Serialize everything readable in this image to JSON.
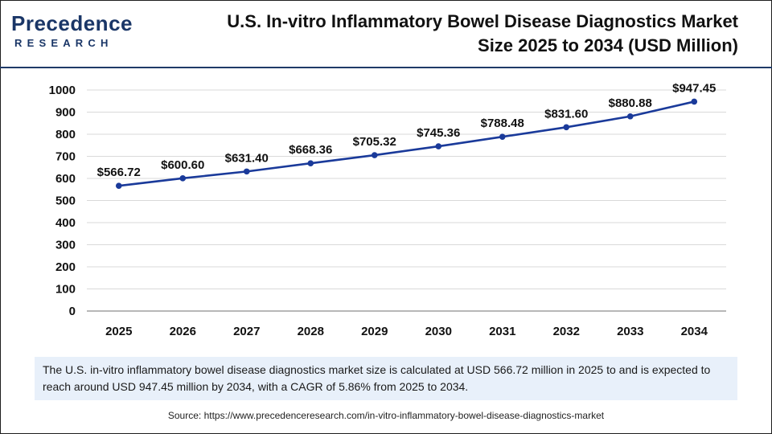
{
  "brand": {
    "logo_top": "Precedence",
    "logo_bottom": "RESEARCH"
  },
  "header": {
    "title_line1": "U.S. In-vitro Inflammatory Bowel Disease Diagnostics Market",
    "title_line2": "Size 2025 to 2034 (USD Million)"
  },
  "chart_data": {
    "type": "line",
    "title": "U.S. In-vitro Inflammatory Bowel Disease Diagnostics Market Size 2025 to 2034 (USD Million)",
    "xlabel": "",
    "ylabel": "",
    "categories": [
      "2025",
      "2026",
      "2027",
      "2028",
      "2029",
      "2030",
      "2031",
      "2032",
      "2033",
      "2034"
    ],
    "series": [
      {
        "name": "Market Size (USD Million)",
        "values": [
          566.72,
          600.6,
          631.4,
          668.36,
          705.32,
          745.36,
          788.48,
          831.6,
          880.88,
          947.45
        ],
        "labels": [
          "$566.72",
          "$600.60",
          "$631.40",
          "$668.36",
          "$705.32",
          "$745.36",
          "$788.48",
          "$831.60",
          "$880.88",
          "$947.45"
        ]
      }
    ],
    "ylim": [
      0,
      1000
    ],
    "yticks": [
      "0",
      "100",
      "200",
      "300",
      "400",
      "500",
      "600",
      "700",
      "800",
      "900",
      "1000"
    ],
    "grid": true,
    "line_color": "#1a3a9a"
  },
  "caption": {
    "text": "The U.S. in-vitro inflammatory bowel disease diagnostics market size is calculated at USD 566.72 million in 2025 to and is expected to reach around USD 947.45 million by 2034, with a CAGR of 5.86% from 2025 to 2034."
  },
  "source": {
    "label": "Source: ",
    "url": "https://www.precedenceresearch.com/in-vitro-inflammatory-bowel-disease-diagnostics-market"
  }
}
